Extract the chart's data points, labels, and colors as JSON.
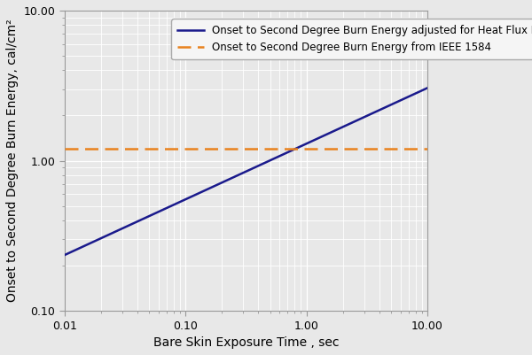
{
  "xlabel": "Bare Skin Exposure Time , sec",
  "ylabel": "Onset to Second Degree Burn Energy, cal/cm²",
  "xlim": [
    0.01,
    10.0
  ],
  "ylim": [
    0.1,
    10.0
  ],
  "blue_line_label": "Onset to Second Degree Burn Energy adjusted for Heat Flux Rate",
  "orange_line_label": "Onset to Second Degree Burn Energy from IEEE 1584",
  "blue_line_color": "#1a1a8c",
  "orange_line_color": "#e8821e",
  "orange_line_value": 1.2,
  "blue_A": 1.298,
  "blue_n": 0.3709,
  "background_color": "#e8e8e8",
  "plot_bg_color": "#e8e8e8",
  "grid_color": "#ffffff",
  "legend_fontsize": 8.5,
  "axis_label_fontsize": 10,
  "tick_label_fontsize": 9,
  "xticks": [
    0.01,
    0.1,
    1.0,
    10.0
  ],
  "xticklabels": [
    "0.01",
    "0.10",
    "1.00",
    "10.00"
  ],
  "yticks": [
    0.1,
    1.0,
    10.0
  ],
  "yticklabels": [
    "0.10",
    "1.00",
    "10.00"
  ]
}
